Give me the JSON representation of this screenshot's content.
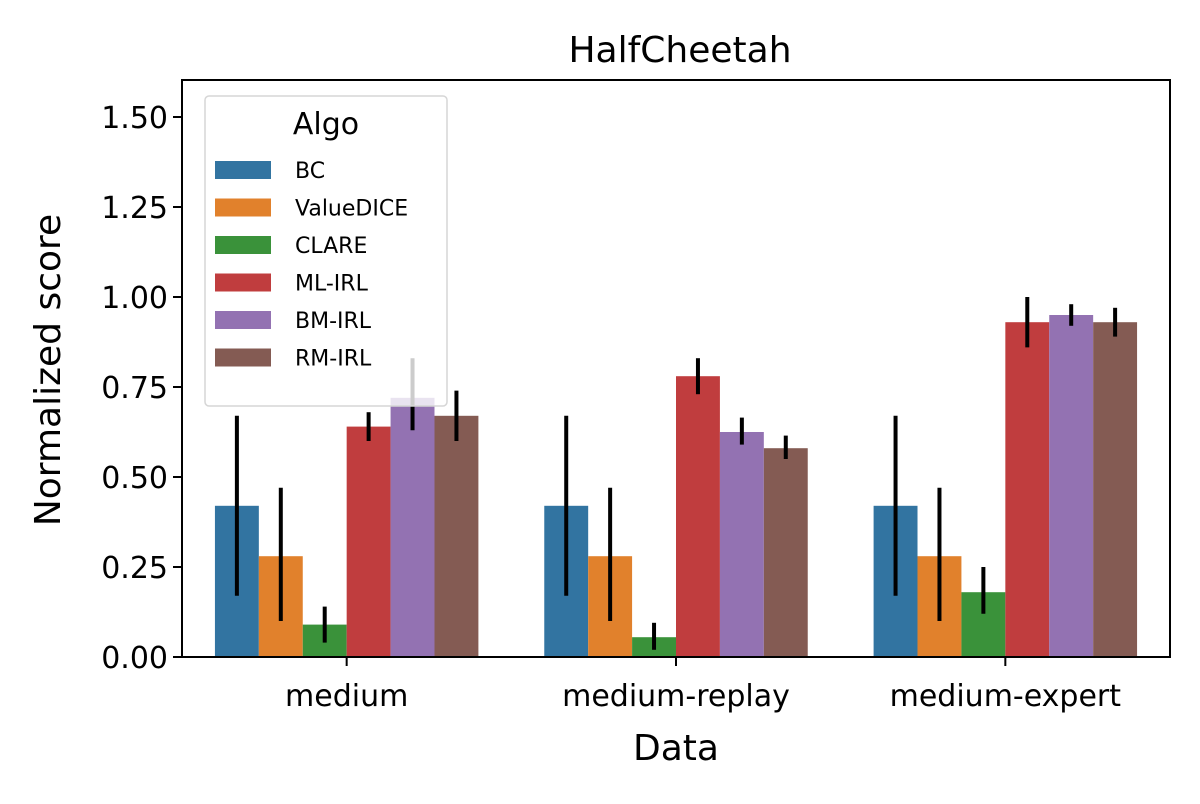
{
  "chart_data": {
    "type": "bar",
    "title": "HalfCheetah",
    "xlabel": "Data",
    "ylabel": "Normalized score",
    "ylim": [
      0,
      1.6
    ],
    "yticks": [
      0.0,
      0.25,
      0.5,
      0.75,
      1.0,
      1.25,
      1.5
    ],
    "ytick_labels": [
      "0.00",
      "0.25",
      "0.50",
      "0.75",
      "1.00",
      "1.25",
      "1.50"
    ],
    "categories": [
      "medium",
      "medium-replay",
      "medium-expert"
    ],
    "grid": false,
    "legend": {
      "title": "Algo",
      "placement": "top-left"
    },
    "series": [
      {
        "name": "BC",
        "color": "#3274a1",
        "values": [
          0.42,
          0.42,
          0.42
        ],
        "err_low": [
          0.17,
          0.17,
          0.17
        ],
        "err_high": [
          0.67,
          0.67,
          0.67
        ]
      },
      {
        "name": "ValueDICE",
        "color": "#e1812c",
        "values": [
          0.28,
          0.28,
          0.28
        ],
        "err_low": [
          0.1,
          0.1,
          0.1
        ],
        "err_high": [
          0.47,
          0.47,
          0.47
        ]
      },
      {
        "name": "CLARE",
        "color": "#3a923a",
        "values": [
          0.09,
          0.055,
          0.18
        ],
        "err_low": [
          0.04,
          0.02,
          0.12
        ],
        "err_high": [
          0.14,
          0.095,
          0.25
        ]
      },
      {
        "name": "ML-IRL",
        "color": "#c03d3e",
        "values": [
          0.64,
          0.78,
          0.93
        ],
        "err_low": [
          0.6,
          0.73,
          0.86
        ],
        "err_high": [
          0.68,
          0.83,
          1.0
        ]
      },
      {
        "name": "BM-IRL",
        "color": "#9372b2",
        "values": [
          0.72,
          0.625,
          0.95
        ],
        "err_low": [
          0.63,
          0.59,
          0.92
        ],
        "err_high": [
          0.83,
          0.665,
          0.98
        ]
      },
      {
        "name": "RM-IRL",
        "color": "#845b53",
        "values": [
          0.67,
          0.58,
          0.93
        ],
        "err_low": [
          0.6,
          0.55,
          0.89
        ],
        "err_high": [
          0.74,
          0.615,
          0.97
        ]
      }
    ]
  }
}
